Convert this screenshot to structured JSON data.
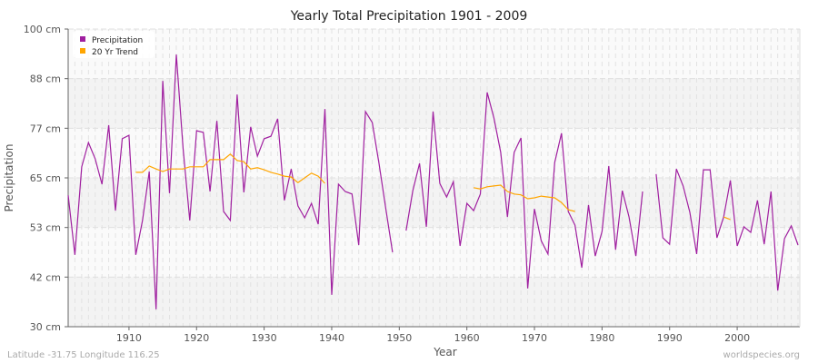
{
  "chart_data": {
    "type": "line",
    "title": "Yearly Total Precipitation 1901 - 2009",
    "xlabel": "Year",
    "ylabel": "Precipitation",
    "xlim": [
      1901,
      2009
    ],
    "ylim": [
      30,
      100
    ],
    "grid": true,
    "legend_position": "top-left",
    "x_ticks": [
      1910,
      1920,
      1930,
      1940,
      1950,
      1960,
      1970,
      1980,
      1990,
      2000
    ],
    "y_ticks": [
      {
        "value": 100,
        "label": "100 cm"
      },
      {
        "value": 88.33,
        "label": "88 cm"
      },
      {
        "value": 76.67,
        "label": "77 cm"
      },
      {
        "value": 65,
        "label": "65 cm"
      },
      {
        "value": 53.33,
        "label": "53 cm"
      },
      {
        "value": 41.67,
        "label": "42 cm"
      },
      {
        "value": 30,
        "label": "30 cm"
      }
    ],
    "series": [
      {
        "name": "Precipitation",
        "color": "#a020a0",
        "x_start": 1901,
        "values": [
          60.9,
          46.9,
          67.6,
          73.3,
          69.5,
          63.5,
          77.4,
          57.3,
          74.2,
          75.0,
          46.9,
          55.0,
          66.5,
          34.1,
          87.8,
          61.4,
          94.0,
          72.0,
          55.0,
          76.1,
          75.7,
          61.8,
          78.4,
          57.1,
          55.0,
          84.6,
          61.6,
          77.0,
          70.1,
          74.2,
          74.8,
          78.9,
          59.7,
          67.1,
          58.4,
          55.6,
          59.0,
          54.1,
          81.2,
          37.5,
          63.5,
          61.8,
          61.2,
          49.2,
          80.6,
          78.0,
          68.4,
          57.7,
          47.5,
          null,
          52.6,
          62.0,
          68.4,
          53.5,
          80.6,
          63.7,
          60.5,
          64.1,
          49.0,
          59.0,
          57.3,
          61.2,
          85.1,
          79.1,
          71.0,
          55.8,
          71.0,
          74.4,
          39.0,
          57.7,
          50.2,
          47.1,
          68.6,
          75.5,
          57.1,
          53.9,
          43.9,
          58.6,
          46.6,
          52.4,
          67.8,
          48.1,
          62.0,
          55.8,
          46.6,
          61.8,
          null,
          65.9,
          50.9,
          49.4,
          67.1,
          63.1,
          56.9,
          47.1,
          66.9,
          66.9,
          50.9,
          55.8,
          64.4,
          49.0,
          53.5,
          52.2,
          59.7,
          49.4,
          61.8,
          38.5,
          50.7,
          53.7,
          49.2
        ]
      },
      {
        "name": "20 Yr Trend",
        "color": "#ffa500",
        "x_start": 1901,
        "values": [
          null,
          null,
          null,
          null,
          null,
          null,
          null,
          null,
          null,
          null,
          66.3,
          66.3,
          67.8,
          67.1,
          66.5,
          67.1,
          67.1,
          67.1,
          67.6,
          67.6,
          67.6,
          69.3,
          69.3,
          69.3,
          70.6,
          69.1,
          68.8,
          67.1,
          67.4,
          66.9,
          66.3,
          65.9,
          65.4,
          65.2,
          63.9,
          65.0,
          66.1,
          65.4,
          63.7,
          null,
          null,
          null,
          null,
          null,
          null,
          null,
          null,
          null,
          null,
          null,
          null,
          null,
          null,
          null,
          null,
          null,
          null,
          null,
          null,
          null,
          62.7,
          62.4,
          62.9,
          63.1,
          63.3,
          61.8,
          61.2,
          61.0,
          60.1,
          60.3,
          60.7,
          60.5,
          60.3,
          59.2,
          57.5,
          57.1,
          null,
          null,
          null,
          null,
          null,
          null,
          null,
          null,
          null,
          null,
          null,
          null,
          null,
          null,
          null,
          null,
          null,
          null,
          null,
          null,
          null,
          55.8,
          55.2,
          null,
          null,
          null,
          null,
          null,
          null,
          null,
          null,
          null,
          null
        ]
      }
    ]
  },
  "footer": {
    "location": "Latitude -31.75 Longitude 116.25",
    "source": "worldspecies.org"
  }
}
